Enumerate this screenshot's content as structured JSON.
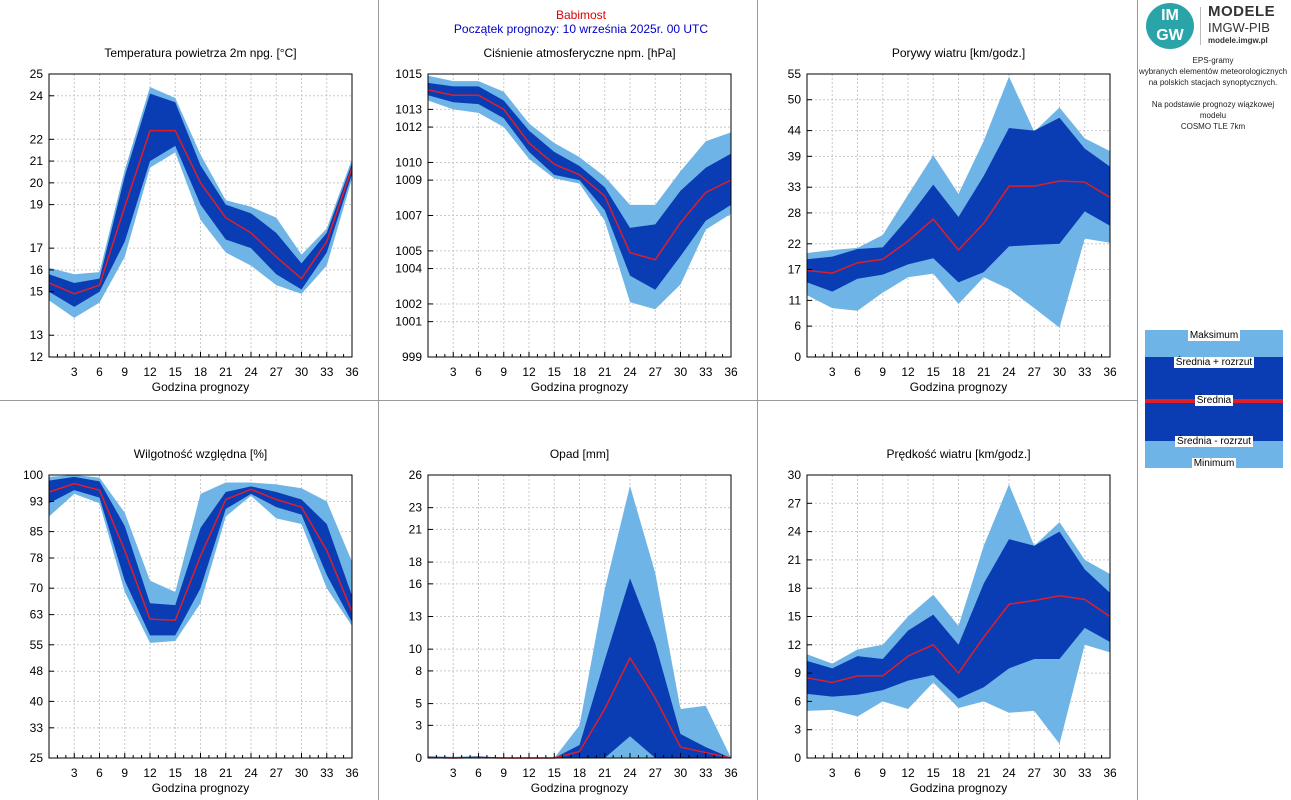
{
  "header": {
    "station": "Babimost",
    "start": "Początek prognozy: 10 września 2025r. 00 UTC"
  },
  "logo": {
    "badge_top": "IM",
    "badge_bottom": "GW",
    "line1": "MODELE",
    "line2": "IMGW-PIB",
    "line3": "modele.imgw.pl"
  },
  "info": {
    "line1": "EPS-gramy",
    "line2": "wybranych elementów meteorologicznych",
    "line3": "na polskich stacjach  synoptycznych.",
    "line4": "Na podstawie prognozy wiązkowej modelu",
    "line5": "COSMO TLE 7km"
  },
  "legend": {
    "max": "Maksimum",
    "plus": "Średnia + rozrzut",
    "mean": "Średnia",
    "minus": "Średnia - rozrzut",
    "min": "Minimum"
  },
  "colors": {
    "light": "#6eb4e6",
    "dark": "#0a3cb4",
    "mean": "#e01e28",
    "grid": "#c8c8c8"
  },
  "chart_data": [
    {
      "type": "area",
      "title": "Temperatura powietrza 2m npg. [°C]",
      "xlabel": "Godzina prognozy",
      "ylabel": "",
      "x": [
        0,
        3,
        6,
        9,
        12,
        15,
        18,
        21,
        24,
        27,
        30,
        33,
        36
      ],
      "xticks": [
        3,
        6,
        9,
        12,
        15,
        18,
        21,
        24,
        27,
        30,
        33,
        36
      ],
      "ylim": [
        12,
        25
      ],
      "yticks": [
        12,
        13,
        15,
        16,
        17,
        19,
        20,
        21,
        22,
        24,
        25
      ],
      "series": [
        {
          "role": "max",
          "values": [
            16.1,
            15.8,
            15.9,
            20.6,
            24.4,
            23.9,
            21.3,
            19.2,
            18.9,
            18.4,
            16.7,
            17.9,
            21.1
          ]
        },
        {
          "role": "mean_plus_spread",
          "values": [
            15.8,
            15.4,
            15.6,
            20.3,
            24.1,
            23.7,
            20.8,
            19.0,
            18.6,
            17.7,
            16.3,
            17.7,
            20.9
          ]
        },
        {
          "role": "mean",
          "values": [
            15.4,
            14.9,
            15.3,
            18.9,
            22.4,
            22.4,
            20.0,
            18.4,
            17.7,
            16.6,
            15.6,
            17.3,
            20.7
          ]
        },
        {
          "role": "mean_minus_spread",
          "values": [
            15.0,
            14.3,
            15.0,
            17.3,
            21.0,
            21.7,
            19.0,
            17.4,
            17.0,
            15.8,
            15.1,
            16.8,
            20.4
          ]
        },
        {
          "role": "min",
          "values": [
            14.6,
            13.8,
            14.5,
            16.6,
            20.7,
            21.4,
            18.3,
            16.8,
            16.2,
            15.3,
            14.9,
            16.2,
            20.2
          ]
        }
      ]
    },
    {
      "type": "area",
      "title": "Ciśnienie atmosferyczne npm. [hPa]",
      "xlabel": "Godzina prognozy",
      "ylabel": "",
      "x": [
        0,
        3,
        6,
        9,
        12,
        15,
        18,
        21,
        24,
        27,
        30,
        33,
        36
      ],
      "xticks": [
        3,
        6,
        9,
        12,
        15,
        18,
        21,
        24,
        27,
        30,
        33,
        36
      ],
      "ylim": [
        999,
        1015
      ],
      "yticks": [
        999,
        1001,
        1002,
        1004,
        1005,
        1007,
        1009,
        1010,
        1012,
        1013,
        1015
      ],
      "series": [
        {
          "role": "max",
          "values": [
            1014.9,
            1014.6,
            1014.6,
            1014.0,
            1012.2,
            1011.1,
            1010.3,
            1009.2,
            1007.6,
            1007.6,
            1009.5,
            1011.2,
            1011.7
          ]
        },
        {
          "role": "mean_plus_spread",
          "values": [
            1014.5,
            1014.3,
            1014.3,
            1013.5,
            1011.8,
            1010.6,
            1009.8,
            1008.6,
            1006.3,
            1006.5,
            1008.4,
            1009.7,
            1010.5
          ]
        },
        {
          "role": "mean",
          "values": [
            1014.1,
            1013.8,
            1013.8,
            1013.0,
            1011.1,
            1009.9,
            1009.3,
            1008.1,
            1004.9,
            1004.5,
            1006.6,
            1008.3,
            1009.0
          ]
        },
        {
          "role": "mean_minus_spread",
          "values": [
            1013.8,
            1013.4,
            1013.3,
            1012.5,
            1010.6,
            1009.3,
            1009.0,
            1007.3,
            1003.6,
            1002.8,
            1004.7,
            1006.7,
            1007.6
          ]
        },
        {
          "role": "min",
          "values": [
            1013.5,
            1013.0,
            1012.8,
            1012.0,
            1010.2,
            1009.1,
            1008.8,
            1006.7,
            1002.1,
            1001.7,
            1003.1,
            1006.2,
            1007.1
          ]
        }
      ]
    },
    {
      "type": "area",
      "title": "Porywy wiatru [km/godz.]",
      "xlabel": "Godzina prognozy",
      "ylabel": "",
      "x": [
        0,
        3,
        6,
        9,
        12,
        15,
        18,
        21,
        24,
        27,
        30,
        33,
        36
      ],
      "xticks": [
        3,
        6,
        9,
        12,
        15,
        18,
        21,
        24,
        27,
        30,
        33,
        36
      ],
      "ylim": [
        0,
        55
      ],
      "yticks": [
        0,
        6,
        11,
        17,
        22,
        28,
        33,
        39,
        44,
        50,
        55
      ],
      "series": [
        {
          "role": "max",
          "values": [
            20.2,
            20.8,
            21.2,
            23.7,
            31.5,
            39.2,
            31.7,
            42.0,
            54.5,
            43.8,
            48.5,
            42.5,
            40.0
          ]
        },
        {
          "role": "mean_plus_spread",
          "values": [
            19.0,
            19.5,
            21.0,
            21.3,
            27.0,
            33.5,
            27.2,
            35.2,
            44.5,
            44.0,
            46.5,
            40.5,
            37.0
          ]
        },
        {
          "role": "mean",
          "values": [
            16.8,
            16.3,
            18.3,
            19.0,
            22.5,
            26.8,
            20.8,
            26.0,
            33.2,
            33.2,
            34.2,
            34.0,
            31.0
          ]
        },
        {
          "role": "mean_minus_spread",
          "values": [
            14.5,
            12.7,
            15.2,
            16.0,
            18.0,
            19.2,
            14.5,
            16.5,
            21.5,
            21.8,
            22.0,
            28.3,
            25.5
          ]
        },
        {
          "role": "min",
          "values": [
            12.0,
            9.5,
            9.0,
            12.5,
            15.5,
            16.2,
            10.3,
            15.5,
            13.2,
            9.5,
            5.7,
            23.0,
            22.2
          ]
        }
      ]
    },
    {
      "type": "area",
      "title": "Wilgotność względna [%]",
      "xlabel": "Godzina prognozy",
      "ylabel": "",
      "x": [
        0,
        3,
        6,
        9,
        12,
        15,
        18,
        21,
        24,
        27,
        30,
        33,
        36
      ],
      "xticks": [
        3,
        6,
        9,
        12,
        15,
        18,
        21,
        24,
        27,
        30,
        33,
        36
      ],
      "ylim": [
        25,
        100
      ],
      "yticks": [
        25,
        33,
        40,
        48,
        55,
        63,
        70,
        78,
        85,
        93,
        100
      ],
      "series": [
        {
          "role": "max",
          "values": [
            99.5,
            100.0,
            99.3,
            90.0,
            72.0,
            69.0,
            95.0,
            98.0,
            98.0,
            97.5,
            96.5,
            93.0,
            77.0
          ]
        },
        {
          "role": "mean_plus_spread",
          "values": [
            98.5,
            99.5,
            98.3,
            86.5,
            66.0,
            65.5,
            86.0,
            95.5,
            97.0,
            95.5,
            93.5,
            87.0,
            68.0
          ]
        },
        {
          "role": "mean",
          "values": [
            95.5,
            97.7,
            96.0,
            80.0,
            61.8,
            61.5,
            78.5,
            93.5,
            96.2,
            93.5,
            91.5,
            80.0,
            63.8
          ]
        },
        {
          "role": "mean_minus_spread",
          "values": [
            92.5,
            96.0,
            94.0,
            72.0,
            57.5,
            57.5,
            70.0,
            91.0,
            95.0,
            91.5,
            89.5,
            73.5,
            61.0
          ]
        },
        {
          "role": "min",
          "values": [
            89.0,
            95.0,
            92.5,
            69.0,
            55.5,
            56.0,
            66.0,
            89.0,
            94.5,
            88.5,
            87.0,
            70.0,
            60.0
          ]
        }
      ]
    },
    {
      "type": "area",
      "title": "Opad [mm]",
      "xlabel": "Godzina prognozy",
      "ylabel": "",
      "x": [
        0,
        3,
        6,
        9,
        12,
        15,
        18,
        21,
        24,
        27,
        30,
        33,
        36
      ],
      "xticks": [
        3,
        6,
        9,
        12,
        15,
        18,
        21,
        24,
        27,
        30,
        33,
        36
      ],
      "ylim": [
        0,
        26
      ],
      "yticks": [
        0,
        3,
        5,
        8,
        10,
        13,
        16,
        18,
        21,
        23,
        26
      ],
      "series": [
        {
          "role": "max",
          "values": [
            0.2,
            0.1,
            0.2,
            0.0,
            0.0,
            0.0,
            3.0,
            15.5,
            25.0,
            17.0,
            4.5,
            4.8,
            0.0
          ]
        },
        {
          "role": "mean_plus_spread",
          "values": [
            0.1,
            0.0,
            0.1,
            0.0,
            0.0,
            0.0,
            1.2,
            9.0,
            16.5,
            10.5,
            2.2,
            1.0,
            0.0
          ]
        },
        {
          "role": "mean",
          "values": [
            0.05,
            0.0,
            0.05,
            0.0,
            0.0,
            0.0,
            0.6,
            4.5,
            9.2,
            5.5,
            1.0,
            0.5,
            0.0
          ]
        },
        {
          "role": "mean_minus_spread",
          "values": [
            0.0,
            0.0,
            0.0,
            0.0,
            0.0,
            0.0,
            0.0,
            0.0,
            2.0,
            0.0,
            0.0,
            0.0,
            0.0
          ]
        },
        {
          "role": "min",
          "values": [
            0.0,
            0.0,
            0.0,
            0.0,
            0.0,
            0.0,
            0.0,
            0.0,
            0.0,
            0.0,
            0.0,
            0.0,
            0.0
          ]
        }
      ]
    },
    {
      "type": "area",
      "title": "Prędkość wiatru [km/godz.]",
      "xlabel": "Godzina prognozy",
      "ylabel": "",
      "x": [
        0,
        3,
        6,
        9,
        12,
        15,
        18,
        21,
        24,
        27,
        30,
        33,
        36
      ],
      "xticks": [
        3,
        6,
        9,
        12,
        15,
        18,
        21,
        24,
        27,
        30,
        33,
        36
      ],
      "ylim": [
        0,
        30
      ],
      "yticks": [
        0,
        3,
        6,
        9,
        12,
        15,
        18,
        21,
        24,
        27,
        30
      ],
      "series": [
        {
          "role": "max",
          "values": [
            11.0,
            10.0,
            11.5,
            12.0,
            15.0,
            17.3,
            14.0,
            22.5,
            29.0,
            22.5,
            25.0,
            21.0,
            19.5
          ]
        },
        {
          "role": "mean_plus_spread",
          "values": [
            10.3,
            9.5,
            10.8,
            10.5,
            13.5,
            15.2,
            12.0,
            18.5,
            23.2,
            22.5,
            24.0,
            20.0,
            17.5
          ]
        },
        {
          "role": "mean",
          "values": [
            8.5,
            8.0,
            8.7,
            8.7,
            10.8,
            12.0,
            9.0,
            12.8,
            16.3,
            16.7,
            17.2,
            16.8,
            15.0
          ]
        },
        {
          "role": "mean_minus_spread",
          "values": [
            6.8,
            6.5,
            6.7,
            7.2,
            8.2,
            8.8,
            6.3,
            7.5,
            9.5,
            10.5,
            10.5,
            13.8,
            12.3
          ]
        },
        {
          "role": "min",
          "values": [
            5.0,
            5.1,
            4.4,
            6.0,
            5.2,
            8.0,
            5.3,
            6.0,
            4.8,
            5.0,
            1.5,
            12.0,
            11.2
          ]
        }
      ]
    }
  ]
}
